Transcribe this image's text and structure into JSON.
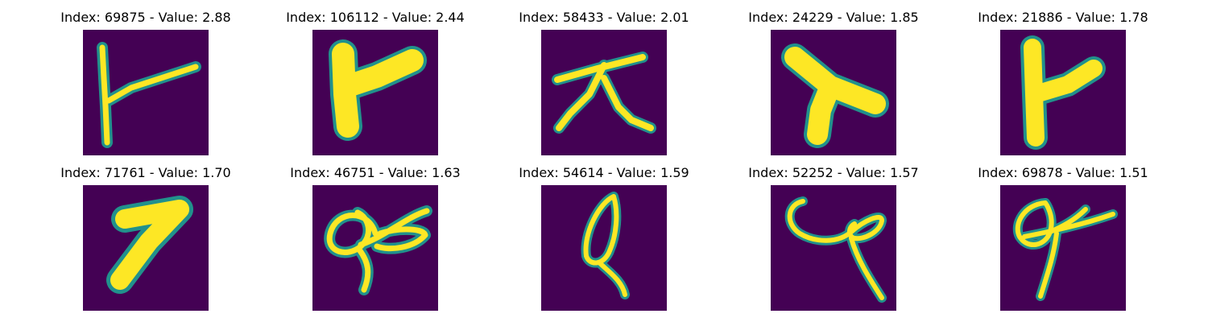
{
  "colors": {
    "background": "#440154",
    "stroke_core": "#fde725",
    "stroke_edge": "#21918c",
    "stroke_mid": "#5ec962"
  },
  "panels": [
    {
      "title": "Index: 69875 - Value: 2.88",
      "glyph": "t-branch"
    },
    {
      "title": "Index: 106112 - Value: 2.44",
      "glyph": "thick-y"
    },
    {
      "title": "Index: 58433 - Value: 2.01",
      "glyph": "lambda-cross"
    },
    {
      "title": "Index: 24229 - Value: 1.85",
      "glyph": "thick-y-angled"
    },
    {
      "title": "Index: 21886 - Value: 1.78",
      "glyph": "thick-y-upright"
    },
    {
      "title": "Index: 71761 - Value: 1.70",
      "glyph": "thick-seven"
    },
    {
      "title": "Index: 46751 - Value: 1.63",
      "glyph": "loop-scribble"
    },
    {
      "title": "Index: 54614 - Value: 1.59",
      "glyph": "loop-q"
    },
    {
      "title": "Index: 52252 - Value: 1.57",
      "glyph": "curl-loop"
    },
    {
      "title": "Index: 69878 - Value: 1.51",
      "glyph": "loop-cross"
    }
  ]
}
